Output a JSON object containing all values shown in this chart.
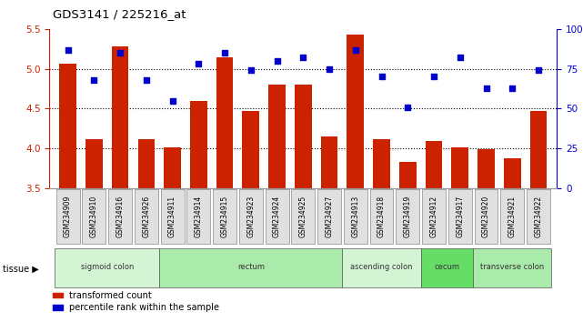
{
  "title": "GDS3141 / 225216_at",
  "samples": [
    "GSM234909",
    "GSM234910",
    "GSM234916",
    "GSM234926",
    "GSM234911",
    "GSM234914",
    "GSM234915",
    "GSM234923",
    "GSM234924",
    "GSM234925",
    "GSM234927",
    "GSM234913",
    "GSM234918",
    "GSM234919",
    "GSM234912",
    "GSM234917",
    "GSM234920",
    "GSM234921",
    "GSM234922"
  ],
  "bar_values": [
    5.07,
    4.12,
    5.28,
    4.12,
    4.01,
    4.6,
    5.15,
    4.47,
    4.8,
    4.8,
    4.15,
    5.43,
    4.12,
    3.83,
    4.1,
    4.01,
    3.99,
    3.88,
    4.47
  ],
  "dot_values": [
    87,
    68,
    85,
    68,
    55,
    78,
    85,
    74,
    80,
    82,
    75,
    87,
    70,
    51,
    70,
    82,
    63,
    63,
    74
  ],
  "ylim_left": [
    3.5,
    5.5
  ],
  "ylim_right": [
    0,
    100
  ],
  "yticks_left": [
    3.5,
    4.0,
    4.5,
    5.0,
    5.5
  ],
  "yticks_right": [
    0,
    25,
    50,
    75,
    100
  ],
  "bar_color": "#cc2200",
  "dot_color": "#0000cc",
  "tissue_groups": [
    {
      "label": "sigmoid colon",
      "start": 0,
      "end": 3,
      "color": "#d4f5d4"
    },
    {
      "label": "rectum",
      "start": 4,
      "end": 10,
      "color": "#aaeaaa"
    },
    {
      "label": "ascending colon",
      "start": 11,
      "end": 13,
      "color": "#d4f5d4"
    },
    {
      "label": "cecum",
      "start": 14,
      "end": 15,
      "color": "#66dd66"
    },
    {
      "label": "transverse colon",
      "start": 16,
      "end": 18,
      "color": "#aaeaaa"
    }
  ],
  "legend_bar_label": "transformed count",
  "legend_dot_label": "percentile rank within the sample",
  "tissue_label": "tissue"
}
